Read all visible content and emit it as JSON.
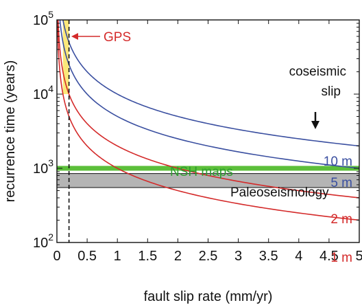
{
  "chart_data": {
    "type": "line",
    "title": "",
    "xlabel": "fault slip rate (mm/yr)",
    "ylabel": "recurrence time (years)",
    "xlim": [
      0,
      5
    ],
    "ylim": [
      100,
      100000
    ],
    "yscale": "log",
    "x_ticks": [
      0,
      0.5,
      1,
      1.5,
      2,
      2.5,
      3,
      3.5,
      4,
      4.5,
      5
    ],
    "x_tick_labels": [
      "0",
      "0.5",
      "1",
      "1.5",
      "2",
      "2.5",
      "3",
      "3.5",
      "4",
      "4.5",
      "5"
    ],
    "y_ticks": [
      100,
      1000,
      10000,
      100000
    ],
    "y_tick_labels": [
      {
        "base": "10",
        "exp": "2"
      },
      {
        "base": "10",
        "exp": "3"
      },
      {
        "base": "10",
        "exp": "4"
      },
      {
        "base": "10",
        "exp": "5"
      }
    ],
    "grid": false,
    "series": [
      {
        "name": "10 m",
        "slip_m": 10,
        "color": "#3a4fa0",
        "formula": "recurrence_years = slip_m * 1000 / slip_rate_mm_per_yr"
      },
      {
        "name": "5 m",
        "slip_m": 5,
        "color": "#3a4fa0",
        "formula": "recurrence_years = slip_m * 1000 / slip_rate_mm_per_yr"
      },
      {
        "name": "2 m",
        "slip_m": 2,
        "color": "#d42a2a",
        "formula": "recurrence_years = slip_m * 1000 / slip_rate_mm_per_yr"
      },
      {
        "name": "1 m",
        "slip_m": 1,
        "color": "#d42a2a",
        "formula": "recurrence_years = slip_m * 1000 / slip_rate_mm_per_yr"
      }
    ],
    "bands": [
      {
        "label": "NSH maps",
        "y": 1000,
        "color": "#5cbf3a",
        "label_color": "#2e9e2e"
      },
      {
        "label": "Paleoseismology",
        "y_range": [
          550,
          850
        ],
        "color": "#b4b4b4",
        "label_color": "#111111"
      }
    ],
    "gps": {
      "label": "GPS",
      "x": 0.2,
      "x_range": [
        0.1,
        0.2
      ],
      "y_range": [
        10000,
        100000
      ],
      "box_color": "#fbe87a",
      "label_color": "#d42a2a"
    },
    "annotations": {
      "coseismic_line1": "coseismic",
      "coseismic_line2": "slip",
      "arrow": "down"
    }
  }
}
